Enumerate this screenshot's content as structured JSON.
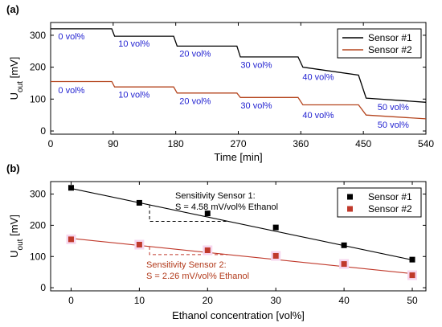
{
  "chart_data": [
    {
      "panel_label": "(a)",
      "type": "line",
      "xlabel": "Time [min]",
      "ylabel": "U_out [mV]",
      "xlim": [
        0,
        540
      ],
      "ylim": [
        -10,
        340
      ],
      "xticks": [
        0,
        90,
        180,
        270,
        360,
        450,
        540
      ],
      "yticks": [
        0,
        100,
        200,
        300
      ],
      "legend": {
        "placement": "top-right",
        "entries": [
          "Sensor #1",
          "Sensor #2"
        ]
      },
      "series": [
        {
          "name": "Sensor #1",
          "color": "#000000",
          "x": [
            0,
            88,
            92,
            177,
            182,
            268,
            273,
            356,
            363,
            443,
            454,
            540
          ],
          "y": [
            320,
            320,
            297,
            297,
            266,
            266,
            232,
            232,
            200,
            175,
            103,
            90
          ]
        },
        {
          "name": "Sensor #2",
          "color": "#b5461f",
          "x": [
            0,
            88,
            92,
            177,
            182,
            268,
            273,
            356,
            363,
            443,
            454,
            540
          ],
          "y": [
            155,
            155,
            138,
            138,
            119,
            119,
            105,
            105,
            82,
            82,
            50,
            38
          ]
        }
      ],
      "annotations": [
        {
          "text": "0 vol%",
          "x": 30,
          "y": 287
        },
        {
          "text": "10 vol%",
          "x": 120,
          "y": 264
        },
        {
          "text": "20 vol%",
          "x": 208,
          "y": 233
        },
        {
          "text": "30 vol%",
          "x": 296,
          "y": 198
        },
        {
          "text": "40 vol%",
          "x": 385,
          "y": 160
        },
        {
          "text": "0 vol%",
          "x": 30,
          "y": 118
        },
        {
          "text": "10 vol%",
          "x": 120,
          "y": 104
        },
        {
          "text": "20 vol%",
          "x": 208,
          "y": 85
        },
        {
          "text": "30 vol%",
          "x": 296,
          "y": 70
        },
        {
          "text": "40 vol%",
          "x": 385,
          "y": 40
        },
        {
          "text": "50 vol%",
          "x": 493,
          "y": 65
        },
        {
          "text": "50 vol%",
          "x": 493,
          "y": 10
        }
      ]
    },
    {
      "panel_label": "(b)",
      "type": "scatter",
      "xlabel": "Ethanol concentration [vol%]",
      "ylabel": "U_out [mV]",
      "xlim": [
        -3,
        52
      ],
      "ylim": [
        -10,
        340
      ],
      "xticks": [
        0,
        10,
        20,
        30,
        40,
        50
      ],
      "yticks": [
        0,
        100,
        200,
        300
      ],
      "legend": {
        "placement": "top-right",
        "entries": [
          "Sensor #1",
          "Sensor #2"
        ]
      },
      "series": [
        {
          "name": "Sensor #1",
          "color": "#000000",
          "x": [
            0,
            10,
            20,
            30,
            40,
            50
          ],
          "y": [
            320,
            272,
            238,
            193,
            136,
            90
          ],
          "fit": {
            "intercept": 318,
            "slope": -4.58
          }
        },
        {
          "name": "Sensor #2",
          "color": "#c0392b",
          "x": [
            0,
            10,
            20,
            30,
            40,
            50
          ],
          "y": [
            155,
            138,
            120,
            102,
            76,
            40
          ],
          "fit": {
            "intercept": 158,
            "slope": -2.26
          }
        }
      ],
      "annotations": [
        {
          "line1": "Sensitivity Sensor 1:",
          "line2": "S = 4.58 mV/vol% Ethanol",
          "color": "#000000"
        },
        {
          "line1": "Sensitivity Sensor 2:",
          "line2": "S = 2.26 mV/vol% Ethanol",
          "color": "#b23a1b"
        }
      ]
    }
  ]
}
